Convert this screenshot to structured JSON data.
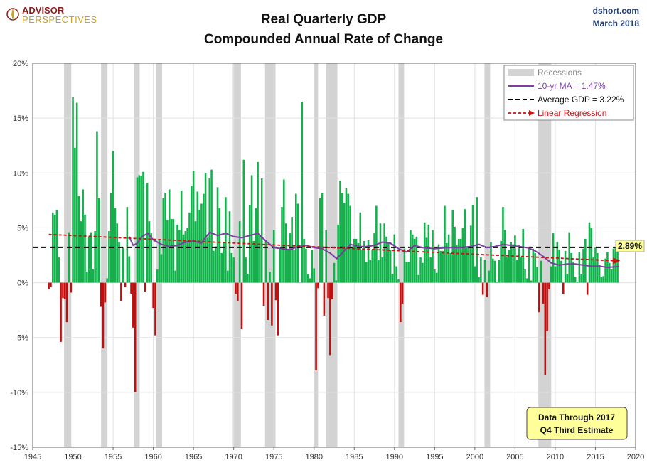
{
  "header": {
    "logo_top": "ADVISOR",
    "logo_bottom": "PERSPECTIVES",
    "source": "dshort.com",
    "date": "March 2018"
  },
  "colors": {
    "positive_bar": "#12b24b",
    "negative_bar": "#c40d0d",
    "recession": "#d3d3d3",
    "moving_average": "#7a3fa0",
    "regression": "#cc1111",
    "average": "#000000",
    "note_bg": "#ffff99",
    "label_bg": "#ffff99"
  },
  "chart_data": {
    "type": "bar",
    "title": "Real Quarterly GDP",
    "subtitle": "Compounded Annual Rate of Change",
    "xlim": [
      1945,
      2020
    ],
    "ylim": [
      -15,
      20
    ],
    "x_ticks": [
      "1945",
      "1950",
      "1955",
      "1960",
      "1965",
      "1970",
      "1975",
      "1980",
      "1985",
      "1990",
      "1995",
      "2000",
      "2005",
      "2010",
      "2015",
      "2020"
    ],
    "y_ticks": [
      "-15%",
      "-10%",
      "-5%",
      "0%",
      "5%",
      "10%",
      "15%",
      "20%"
    ],
    "grid": true,
    "legend_position": "top-right",
    "legend": {
      "recessions": "Recessions",
      "moving_average": "10-yr MA = 1.47%",
      "average": "Average GDP = 3.22%",
      "regression": "Linear Regression"
    },
    "recessions": [
      [
        1948.9,
        1949.8
      ],
      [
        1953.5,
        1954.3
      ],
      [
        1957.6,
        1958.3
      ],
      [
        1960.3,
        1961.1
      ],
      [
        1969.9,
        1970.9
      ],
      [
        1973.9,
        1975.2
      ],
      [
        1980.0,
        1980.5
      ],
      [
        1981.5,
        1982.9
      ],
      [
        1990.5,
        1991.2
      ],
      [
        2001.2,
        2001.9
      ],
      [
        2007.9,
        2009.5
      ]
    ],
    "average_gdp": 3.22,
    "regression": {
      "start": [
        1947.0,
        4.4
      ],
      "end": [
        2017.9,
        2.0
      ]
    },
    "regression_end_label": "2.89%",
    "moving_average_series": [
      [
        1957.0,
        4.2
      ],
      [
        1957.5,
        3.4
      ],
      [
        1958.0,
        3.6
      ],
      [
        1958.6,
        4.2
      ],
      [
        1959.3,
        4.5
      ],
      [
        1960.0,
        3.9
      ],
      [
        1961.0,
        3.5
      ],
      [
        1962.0,
        3.3
      ],
      [
        1963.0,
        3.4
      ],
      [
        1964.0,
        3.7
      ],
      [
        1965.0,
        3.8
      ],
      [
        1966.0,
        3.6
      ],
      [
        1967.0,
        4.6
      ],
      [
        1968.0,
        4.3
      ],
      [
        1969.0,
        4.5
      ],
      [
        1970.0,
        4.2
      ],
      [
        1971.0,
        4.1
      ],
      [
        1972.0,
        4.3
      ],
      [
        1973.0,
        4.5
      ],
      [
        1974.0,
        3.8
      ],
      [
        1975.0,
        3.2
      ],
      [
        1976.0,
        3.1
      ],
      [
        1977.0,
        3.0
      ],
      [
        1978.0,
        3.3
      ],
      [
        1979.0,
        3.4
      ],
      [
        1980.0,
        3.2
      ],
      [
        1981.0,
        3.1
      ],
      [
        1982.0,
        2.7
      ],
      [
        1982.8,
        2.2
      ],
      [
        1983.5,
        2.7
      ],
      [
        1984.5,
        3.5
      ],
      [
        1985.5,
        3.3
      ],
      [
        1986.5,
        3.3
      ],
      [
        1987.5,
        3.4
      ],
      [
        1988.5,
        3.7
      ],
      [
        1989.5,
        3.6
      ],
      [
        1990.5,
        3.1
      ],
      [
        1991.5,
        2.8
      ],
      [
        1992.5,
        3.4
      ],
      [
        1993.5,
        3.2
      ],
      [
        1995.0,
        3.1
      ],
      [
        1996.5,
        3.2
      ],
      [
        1998.0,
        3.2
      ],
      [
        1999.5,
        3.3
      ],
      [
        2000.5,
        3.5
      ],
      [
        2001.5,
        3.2
      ],
      [
        2002.5,
        3.3
      ],
      [
        2003.5,
        3.5
      ],
      [
        2004.5,
        3.4
      ],
      [
        2005.5,
        3.3
      ],
      [
        2006.5,
        3.2
      ],
      [
        2007.5,
        2.9
      ],
      [
        2008.5,
        2.4
      ],
      [
        2009.5,
        1.8
      ],
      [
        2010.5,
        1.6
      ],
      [
        2011.5,
        1.7
      ],
      [
        2012.5,
        1.7
      ],
      [
        2013.5,
        1.6
      ],
      [
        2014.5,
        1.5
      ],
      [
        2015.5,
        1.5
      ],
      [
        2016.5,
        1.4
      ],
      [
        2017.9,
        1.47
      ]
    ],
    "series": [
      {
        "x": [
          1947.0,
          1947.25,
          1947.5,
          1947.75,
          1948.0,
          1948.25,
          1948.5,
          1948.75,
          1949.0,
          1949.25,
          1949.5,
          1949.75,
          1950.0,
          1950.25,
          1950.5,
          1950.75,
          1951.0,
          1951.25,
          1951.5,
          1951.75,
          1952.0,
          1952.25,
          1952.5,
          1952.75,
          1953.0,
          1953.25,
          1953.5,
          1953.75,
          1954.0,
          1954.25,
          1954.5,
          1954.75,
          1955.0,
          1955.25,
          1955.5,
          1955.75,
          1956.0,
          1956.25,
          1956.5,
          1956.75,
          1957.0,
          1957.25,
          1957.5,
          1957.75,
          1958.0,
          1958.25,
          1958.5,
          1958.75,
          1959.0,
          1959.25,
          1959.5,
          1959.75,
          1960.0,
          1960.25,
          1960.5,
          1960.75,
          1961.0,
          1961.25,
          1961.5,
          1961.75,
          1962.0,
          1962.25,
          1962.5,
          1962.75,
          1963.0,
          1963.25,
          1963.5,
          1963.75,
          1964.0,
          1964.25,
          1964.5,
          1964.75,
          1965.0,
          1965.25,
          1965.5,
          1965.75,
          1966.0,
          1966.25,
          1966.5,
          1966.75,
          1967.0,
          1967.25,
          1967.5,
          1967.75,
          1968.0,
          1968.25,
          1968.5,
          1968.75,
          1969.0,
          1969.25,
          1969.5,
          1969.75,
          1970.0,
          1970.25,
          1970.5,
          1970.75,
          1971.0,
          1971.25,
          1971.5,
          1971.75,
          1972.0,
          1972.25,
          1972.5,
          1972.75,
          1973.0,
          1973.25,
          1973.5,
          1973.75,
          1974.0,
          1974.25,
          1974.5,
          1974.75,
          1975.0,
          1975.25,
          1975.5,
          1975.75,
          1976.0,
          1976.25,
          1976.5,
          1976.75,
          1977.0,
          1977.25,
          1977.5,
          1977.75,
          1978.0,
          1978.25,
          1978.5,
          1978.75,
          1979.0,
          1979.25,
          1979.5,
          1979.75,
          1980.0,
          1980.25,
          1980.5,
          1980.75,
          1981.0,
          1981.25,
          1981.5,
          1981.75,
          1982.0,
          1982.25,
          1982.5,
          1982.75,
          1983.0,
          1983.25,
          1983.5,
          1983.75,
          1984.0,
          1984.25,
          1984.5,
          1984.75,
          1985.0,
          1985.25,
          1985.5,
          1985.75,
          1986.0,
          1986.25,
          1986.5,
          1986.75,
          1987.0,
          1987.25,
          1987.5,
          1987.75,
          1988.0,
          1988.25,
          1988.5,
          1988.75,
          1989.0,
          1989.25,
          1989.5,
          1989.75,
          1990.0,
          1990.25,
          1990.5,
          1990.75,
          1991.0,
          1991.25,
          1991.5,
          1991.75,
          1992.0,
          1992.25,
          1992.5,
          1992.75,
          1993.0,
          1993.25,
          1993.5,
          1993.75,
          1994.0,
          1994.25,
          1994.5,
          1994.75,
          1995.0,
          1995.25,
          1995.5,
          1995.75,
          1996.0,
          1996.25,
          1996.5,
          1996.75,
          1997.0,
          1997.25,
          1997.5,
          1997.75,
          1998.0,
          1998.25,
          1998.5,
          1998.75,
          1999.0,
          1999.25,
          1999.5,
          1999.75,
          2000.0,
          2000.25,
          2000.5,
          2000.75,
          2001.0,
          2001.25,
          2001.5,
          2001.75,
          2002.0,
          2002.25,
          2002.5,
          2002.75,
          2003.0,
          2003.25,
          2003.5,
          2003.75,
          2004.0,
          2004.25,
          2004.5,
          2004.75,
          2005.0,
          2005.25,
          2005.5,
          2005.75,
          2006.0,
          2006.25,
          2006.5,
          2006.75,
          2007.0,
          2007.25,
          2007.5,
          2007.75,
          2008.0,
          2008.25,
          2008.5,
          2008.75,
          2009.0,
          2009.25,
          2009.5,
          2009.75,
          2010.0,
          2010.25,
          2010.5,
          2010.75,
          2011.0,
          2011.25,
          2011.5,
          2011.75,
          2012.0,
          2012.25,
          2012.5,
          2012.75,
          2013.0,
          2013.25,
          2013.5,
          2013.75,
          2014.0,
          2014.25,
          2014.5,
          2014.75,
          2015.0,
          2015.25,
          2015.5,
          2015.75,
          2016.0,
          2016.25,
          2016.5,
          2016.75,
          2017.0,
          2017.25,
          2017.5,
          2017.75
        ],
        "values": [
          -0.6,
          -0.4,
          6.4,
          6.2,
          6.6,
          2.3,
          -5.4,
          -1.4,
          -1.5,
          -3.6,
          4.6,
          -0.9,
          16.9,
          12.3,
          16.4,
          7.9,
          5.6,
          8.5,
          6.2,
          1.0,
          4.2,
          4.6,
          1.2,
          4.7,
          13.8,
          7.7,
          -2.2,
          -6.0,
          -1.8,
          0.4,
          4.7,
          8.2,
          12.0,
          6.8,
          5.4,
          3.7,
          -1.7,
          3.2,
          -0.4,
          6.9,
          2.4,
          -1.0,
          -4.1,
          -10.0,
          9.6,
          9.8,
          9.7,
          10.1,
          -0.8,
          9.1,
          5.6,
          4.5,
          -2.3,
          -4.8,
          1.2,
          3.9,
          2.6,
          7.7,
          8.2,
          5.7,
          8.5,
          5.8,
          5.8,
          1.1,
          5.3,
          4.8,
          8.4,
          4.4,
          4.7,
          5.0,
          6.4,
          8.8,
          10.2,
          5.6,
          8.3,
          6.6,
          7.2,
          8.1,
          10.0,
          4.1,
          9.5,
          10.3,
          2.9,
          3.3,
          8.7,
          6.8,
          2.7,
          3.7,
          7.8,
          1.1,
          6.5,
          2.7,
          2.3,
          -1.0,
          -1.7,
          5.6,
          -4.2,
          11.2,
          2.3,
          0.8,
          7.1,
          9.8,
          3.8,
          6.8,
          11.0,
          4.3,
          9.5,
          -2.1,
          3.9,
          -3.4,
          1.0,
          -3.9,
          4.8,
          -1.6,
          -4.8,
          3.1,
          6.9,
          9.4,
          5.4,
          3.0,
          4.5,
          6.0,
          3.0,
          8.1,
          7.2,
          0.0,
          16.5,
          4.0,
          3.1,
          0.8,
          0.4,
          3.0,
          1.3,
          -8.0,
          -0.5,
          7.7,
          8.2,
          -3.0,
          4.8,
          -1.4,
          -6.6,
          -1.5,
          1.8,
          0.2,
          5.3,
          9.3,
          8.2,
          7.3,
          8.6,
          8.1,
          7.0,
          3.3,
          4.0,
          4.0,
          3.6,
          6.4,
          3.0,
          3.8,
          1.9,
          3.9,
          2.1,
          3.0,
          4.5,
          7.0,
          2.1,
          5.4,
          2.3,
          5.4,
          4.2,
          3.6,
          3.0,
          0.8,
          4.4,
          1.5,
          0.3,
          -3.6,
          -1.9,
          3.1,
          1.9,
          1.9,
          4.8,
          4.4,
          4.0,
          4.2,
          0.7,
          2.3,
          1.8,
          5.5,
          4.1,
          5.3,
          2.3,
          4.8,
          1.2,
          0.9,
          3.5,
          2.9,
          2.9,
          7.0,
          3.6,
          4.4,
          2.7,
          6.6,
          5.1,
          3.4,
          4.0,
          4.0,
          5.0,
          6.7,
          3.2,
          3.2,
          5.2,
          7.1,
          1.5,
          7.8,
          0.5,
          2.3,
          -1.1,
          2.1,
          -1.3,
          1.1,
          3.7,
          2.2,
          2.0,
          0.1,
          2.1,
          3.8,
          6.9,
          4.8,
          2.3,
          3.0,
          3.7,
          3.5,
          4.3,
          2.1,
          3.4,
          2.3,
          4.9,
          1.2,
          0.4,
          3.2,
          0.2,
          3.1,
          2.7,
          1.4,
          -2.7,
          2.0,
          -1.9,
          -8.4,
          -4.4,
          -0.6,
          1.5,
          4.5,
          1.5,
          3.7,
          3.0,
          2.0,
          -1.0,
          2.9,
          0.8,
          4.6,
          2.7,
          1.9,
          0.5,
          0.1,
          2.8,
          0.8,
          3.1,
          4.0,
          -1.1,
          5.5,
          5.0,
          2.3,
          3.2,
          2.7,
          1.6,
          0.5,
          0.6,
          2.2,
          2.8,
          1.8,
          1.2,
          3.1,
          3.2,
          2.9
        ]
      }
    ]
  },
  "note": {
    "line1": "Data Through 2017",
    "line2": "Q4 Third Estimate"
  }
}
